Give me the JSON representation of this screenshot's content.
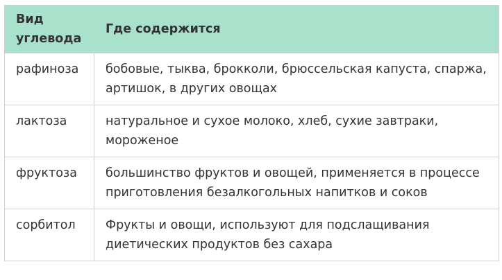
{
  "table": {
    "headers": [
      "Вид углевода",
      "Где содержится"
    ],
    "rows": [
      [
        "рафиноза",
        "бобовые, тыква, брокколи, брюссельская капуста, спаржа, артишок, в других овощах"
      ],
      [
        "лактоза",
        "натуральное и сухое молоко, хлеб, сухие завтраки, мороженое"
      ],
      [
        "фруктоза",
        "большинство фруктов и овощей, применяется в процессе приготовления безалкогольных напитков и соков"
      ],
      [
        "сорбитол",
        "Фрукты и овощи, используют для подслащивания диетических продуктов без сахара"
      ]
    ]
  },
  "colors": {
    "header_bg": "#a8e2cc",
    "border": "#d0d0d0",
    "text": "#333333"
  }
}
